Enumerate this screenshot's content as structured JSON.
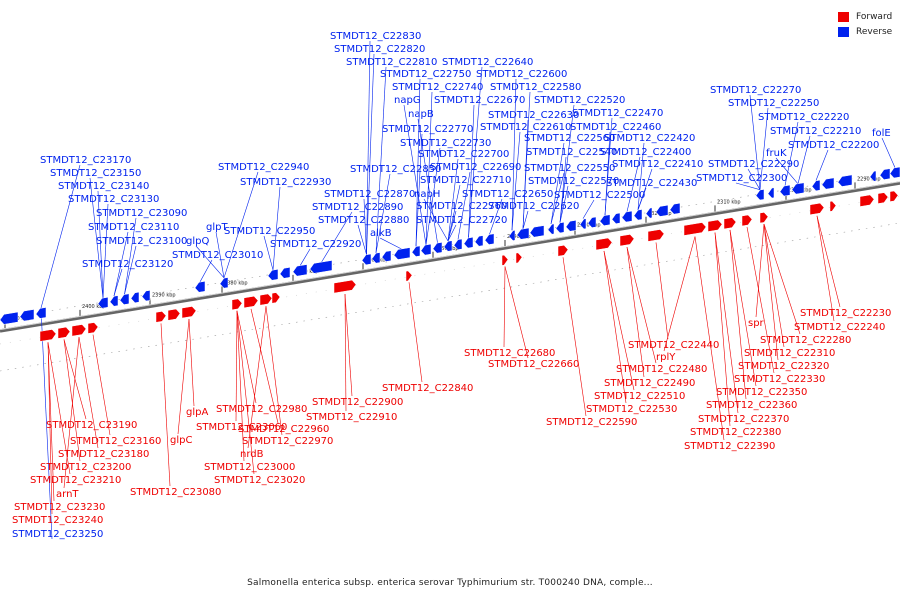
{
  "caption": "Salmonella enterica subsp. enterica serovar Typhimurium str. T000240 DNA, comple...",
  "legend": {
    "forward_label": "Forward",
    "reverse_label": "Reverse",
    "forward_color": "#ee0000",
    "reverse_color": "#0022ee"
  },
  "ticks": [
    "2410 kbp",
    "2400 kbp",
    "2390 kbp",
    "2380 kbp",
    "2370 kbp",
    "2360 kbp",
    "2350 kbp",
    "2340 kbp",
    "2330 kbp",
    "2320 kbp",
    "2310 kbp",
    "2300 kbp",
    "2290 kbp"
  ],
  "reverse_labels": [
    "STMDT12_C23250",
    "STMDT12_C23170",
    "STMDT12_C23150",
    "STMDT12_C23140",
    "STMDT12_C23130",
    "STMDT12_C23090",
    "STMDT12_C23110",
    "glpT",
    "STMDT12_C23100",
    "glpQ",
    "STMDT12_C23120",
    "STMDT12_C23010",
    "STMDT12_C22940",
    "STMDT12_C22930",
    "STMDT12_C22950",
    "STMDT12_C22920",
    "STMDT12_C22830",
    "STMDT12_C22820",
    "STMDT12_C22810",
    "STMDT12_C22750",
    "STMDT12_C22740",
    "napG",
    "napB",
    "STMDT12_C22770",
    "STMDT12_C22730",
    "STMDT12_C22850",
    "STMDT12_C22870",
    "STMDT12_C22890",
    "STMDT12_C22880",
    "alkB",
    "napH",
    "STMDT12_C22640",
    "STMDT12_C22600",
    "STMDT12_C22580",
    "STMDT12_C22670",
    "STMDT12_C22630",
    "STMDT12_C22610",
    "STMDT12_C22700",
    "STMDT12_C22710",
    "STMDT12_C22690",
    "STMDT12_C22760",
    "STMDT12_C22720",
    "STMDT12_C22650",
    "STMDT12_C22620",
    "STMDT12_C22520",
    "STMDT12_C22470",
    "STMDT12_C22460",
    "STMDT12_C22560",
    "STMDT12_C22540",
    "STMDT12_C22570",
    "STMDT12_C22550",
    "STMDT12_C22500",
    "STMDT12_C22420",
    "STMDT12_C22400",
    "STMDT12_C22410",
    "STMDT12_C22430",
    "STMDT12_C22270",
    "STMDT12_C22250",
    "STMDT12_C22220",
    "STMDT12_C22210",
    "STMDT12_C22200",
    "fruK",
    "folE",
    "STMDT12_C22290",
    "STMDT12_C22300"
  ],
  "forward_labels": [
    "STMDT12_C23190",
    "STMDT12_C23160",
    "STMDT12_C23180",
    "STMDT12_C23200",
    "STMDT12_C23210",
    "arnT",
    "STMDT12_C23230",
    "STMDT12_C23240",
    "glpA",
    "STMDT12_C23060",
    "glpC",
    "STMDT12_C23080",
    "STMDT12_C22980",
    "STMDT12_C22960",
    "STMDT12_C22970",
    "nrdB",
    "STMDT12_C23000",
    "STMDT12_C23020",
    "STMDT12_C22900",
    "STMDT12_C22910",
    "STMDT12_C22840",
    "STMDT12_C22680",
    "STMDT12_C22660",
    "STMDT12_C22440",
    "rplY",
    "STMDT12_C22480",
    "STMDT12_C22490",
    "STMDT12_C22510",
    "STMDT12_C22530",
    "STMDT12_C22590",
    "STMDT12_C22230",
    "STMDT12_C22240",
    "spr",
    "STMDT12_C22280",
    "STMDT12_C22310",
    "STMDT12_C22320",
    "STMDT12_C22330",
    "STMDT12_C22350",
    "STMDT12_C22360",
    "STMDT12_C22370",
    "STMDT12_C22380",
    "STMDT12_C22390"
  ]
}
